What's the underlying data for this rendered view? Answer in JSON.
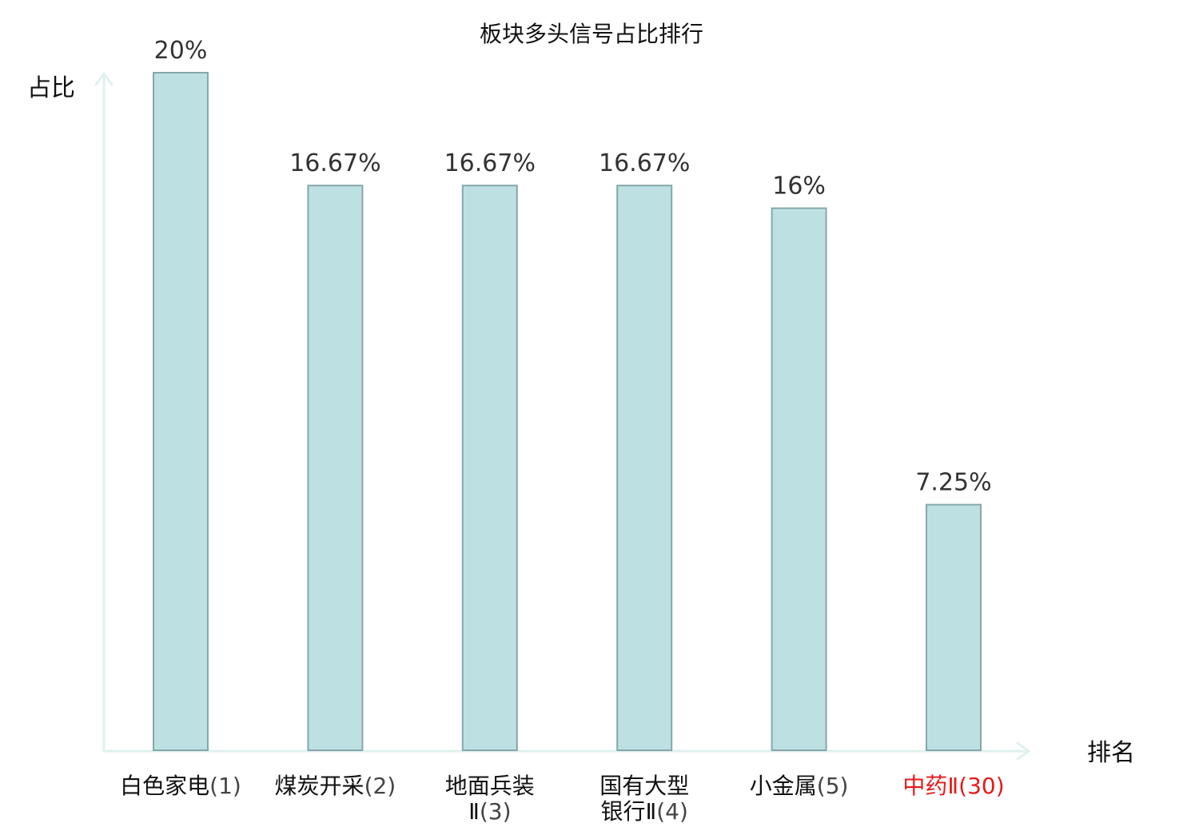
{
  "chart_data": {
    "type": "bar",
    "title": "板块多头信号占比排行",
    "xlabel": "排名",
    "ylabel": "占比",
    "categories": [
      {
        "name": [
          "白色家电"
        ],
        "rank": "(1)",
        "highlight": false
      },
      {
        "name": [
          "煤炭开采"
        ],
        "rank": "(2)",
        "highlight": false
      },
      {
        "name": [
          "地面兵装",
          "Ⅱ"
        ],
        "rank": "(3)",
        "highlight": false
      },
      {
        "name": [
          "国有大型",
          "银行Ⅱ"
        ],
        "rank": "(4)",
        "highlight": false
      },
      {
        "name": [
          "小金属"
        ],
        "rank": "(5)",
        "highlight": false
      },
      {
        "name": [
          "中药Ⅱ"
        ],
        "rank": "(30)",
        "highlight": true
      }
    ],
    "values": [
      20,
      16.67,
      16.67,
      16.67,
      16,
      7.25
    ],
    "value_labels": [
      "20%",
      "16.67%",
      "16.67%",
      "16.67%",
      "16%",
      "7.25%"
    ],
    "ylim": [
      0,
      20
    ],
    "grid": false,
    "colors": {
      "bar_fill": "#bde0e3",
      "bar_stroke": "#86a7a9",
      "axis": "#e0f2ef",
      "highlight_text": "#e8191a",
      "normal_text": "#111111",
      "rank_text": "#444444"
    }
  }
}
